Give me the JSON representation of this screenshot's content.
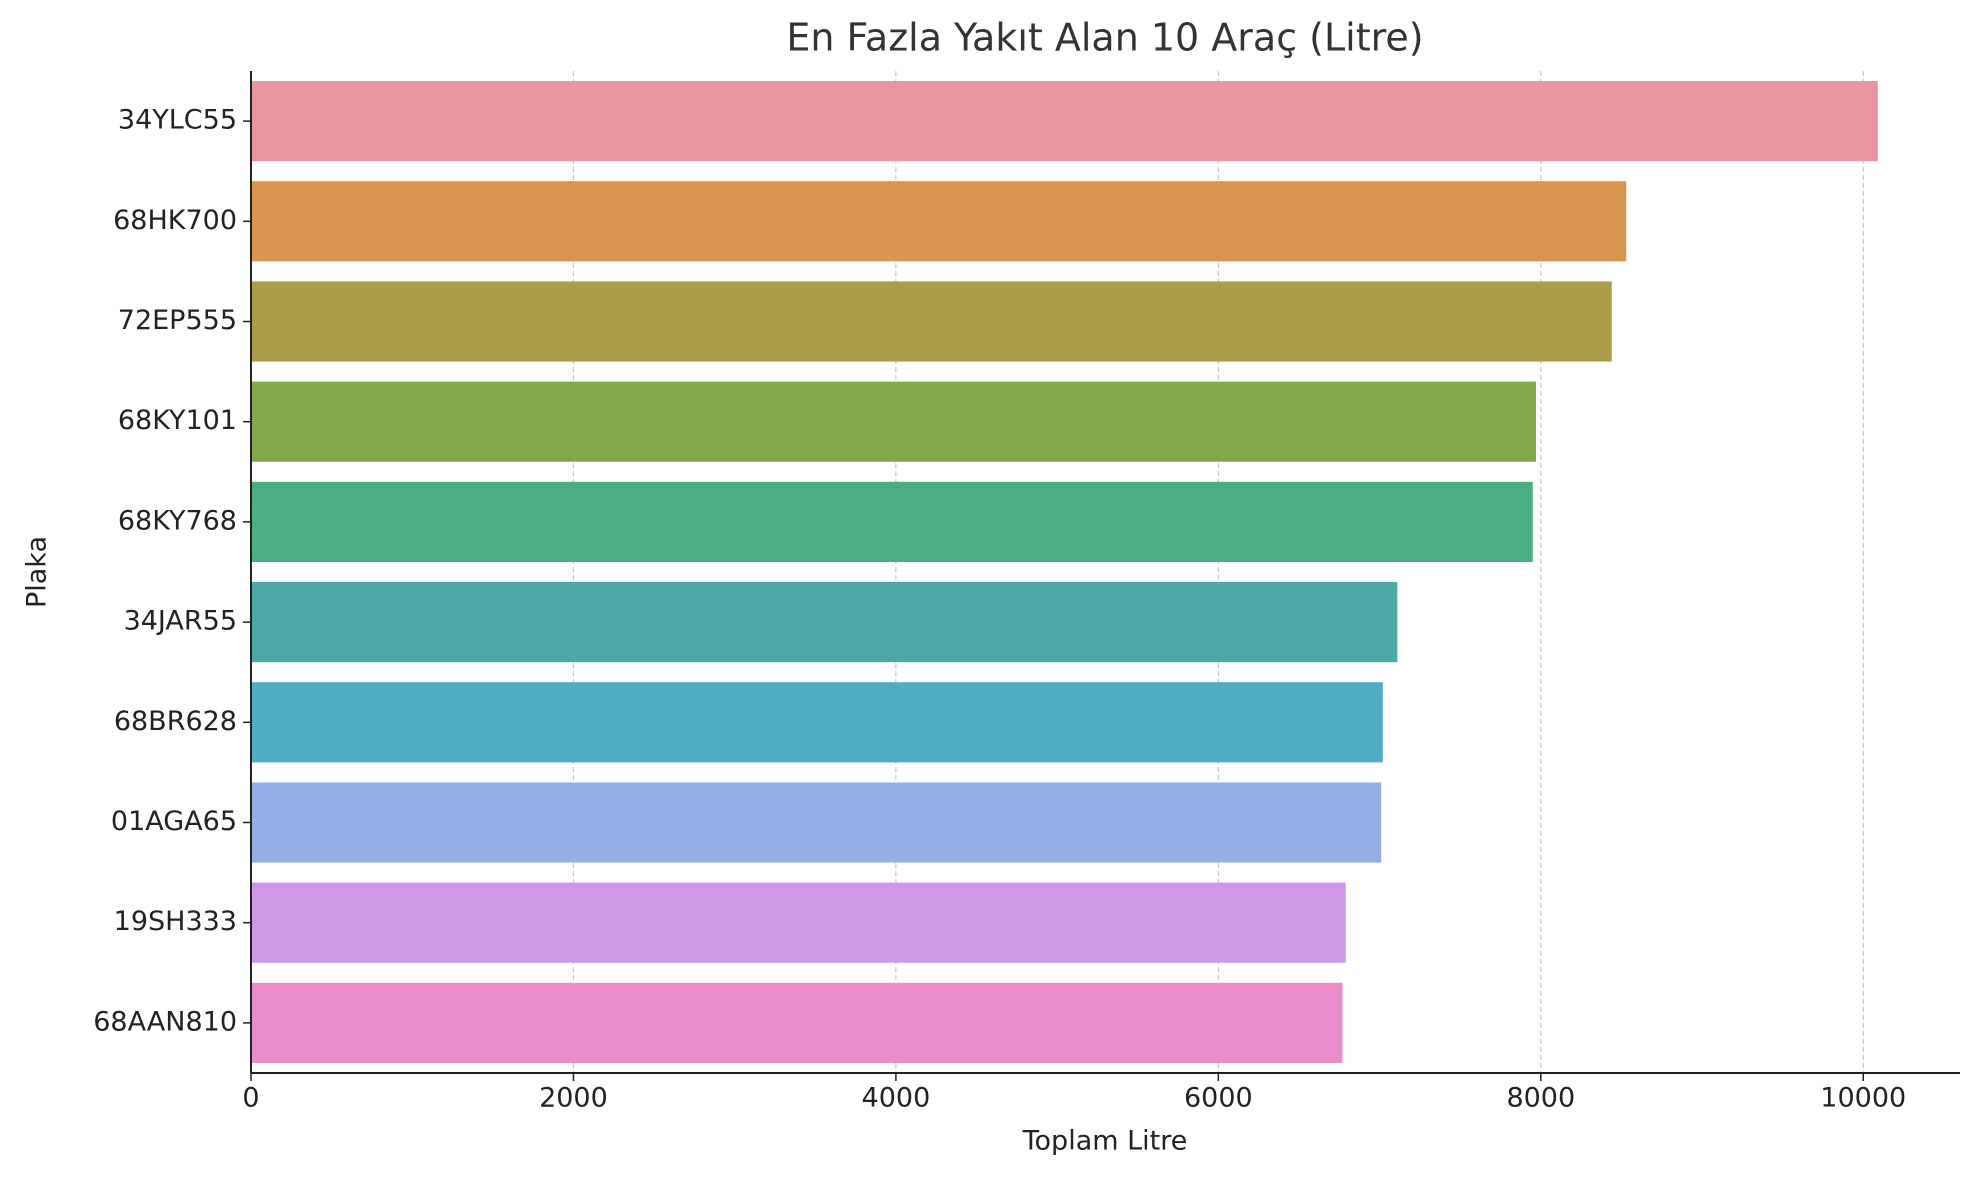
{
  "chart_data": {
    "type": "barh",
    "title": "En Fazla Yakıt Alan 10 Araç (Litre)",
    "x_label": "Toplam Litre",
    "y_label": "Plaka",
    "categories": [
      "34YLC55",
      "68HK700",
      "72EP555",
      "68KY101",
      "68KY768",
      "34JAR55",
      "68BR628",
      "01AGA65",
      "19SH333",
      "68AAN810"
    ],
    "values": [
      10090,
      8530,
      8440,
      7970,
      7950,
      7110,
      7020,
      7010,
      6790,
      6770
    ],
    "colors": [
      "#e8959f",
      "#d8954f",
      "#aa9d47",
      "#81a94a",
      "#4bae80",
      "#4ca9a5",
      "#50adc6",
      "#96aee6",
      "#cf98e6",
      "#e98dca"
    ],
    "xlim": [
      0,
      10600
    ],
    "xticks": [
      0,
      2000,
      4000,
      6000,
      8000,
      10000
    ],
    "grid": true
  }
}
